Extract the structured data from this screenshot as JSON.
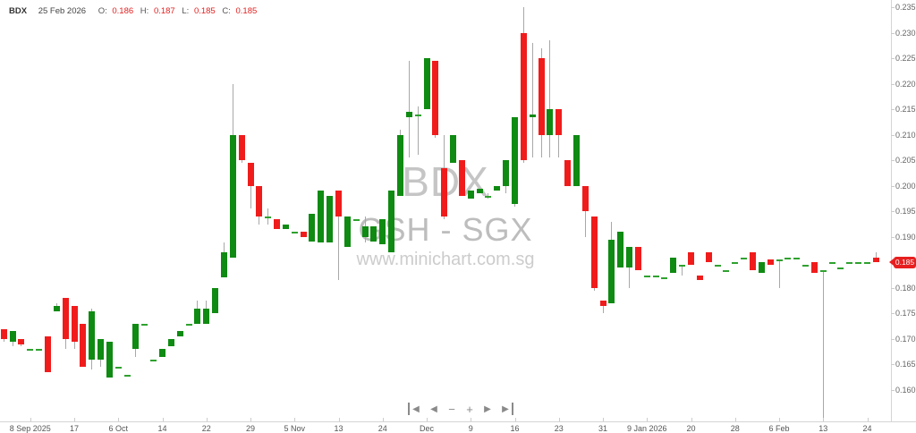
{
  "header": {
    "symbol": "BDX",
    "date": "25 Feb 2026",
    "o_label": "O:",
    "o_value": "0.186",
    "h_label": "H:",
    "h_value": "0.187",
    "l_label": "L:",
    "l_value": "0.185",
    "c_label": "C:",
    "c_value": "0.185"
  },
  "watermark": {
    "symbol": "BDX",
    "name_exchange": "GSH - SGX",
    "site": "www.minichart.com.sg"
  },
  "nav": {
    "skip_start": "◀",
    "step_back": "◀",
    "zoom_out": "−",
    "zoom_in": "+",
    "step_forward": "▶",
    "skip_end": "▶"
  },
  "chart_data": {
    "type": "candlestick",
    "title": "BDX",
    "subtitle": "GSH - SGX",
    "exchange": "SGX",
    "last_price": "0.185",
    "colors": {
      "up": "#0f8a12",
      "down": "#f01c1c",
      "doji": "#2fa12f",
      "wick": "#a8a8a8",
      "badge": "#e71f1f",
      "value_text": "#e32020",
      "watermark": "#c5c5c5"
    },
    "y_axis": {
      "min": 0.16,
      "max": 0.235,
      "step": 0.005,
      "labels": [
        "0.235",
        "0.230",
        "0.225",
        "0.220",
        "0.215",
        "0.210",
        "0.205",
        "0.200",
        "0.195",
        "0.190",
        "0.180",
        "0.175",
        "0.170",
        "0.165",
        "0.160"
      ]
    },
    "x_labels": [
      {
        "t": "8 Sep 2025",
        "i": 3
      },
      {
        "t": "17",
        "i": 8
      },
      {
        "t": "6 Oct",
        "i": 13
      },
      {
        "t": "14",
        "i": 18
      },
      {
        "t": "22",
        "i": 23
      },
      {
        "t": "29",
        "i": 28
      },
      {
        "t": "5 Nov",
        "i": 33
      },
      {
        "t": "13",
        "i": 38
      },
      {
        "t": "24",
        "i": 43
      },
      {
        "t": "Dec",
        "i": 48
      },
      {
        "t": "9",
        "i": 53
      },
      {
        "t": "16",
        "i": 58
      },
      {
        "t": "23",
        "i": 63
      },
      {
        "t": "31",
        "i": 68
      },
      {
        "t": "9 Jan 2026",
        "i": 73
      },
      {
        "t": "20",
        "i": 78
      },
      {
        "t": "28",
        "i": 83
      },
      {
        "t": "6 Feb",
        "i": 88
      },
      {
        "t": "13",
        "i": 93
      },
      {
        "t": "24",
        "i": 98
      }
    ],
    "candles": [
      {
        "o": 0.172,
        "h": 0.172,
        "l": 0.1695,
        "c": 0.17
      },
      {
        "o": 0.1695,
        "h": 0.1715,
        "l": 0.1685,
        "c": 0.1715
      },
      {
        "o": 0.17,
        "h": 0.17,
        "l": 0.1685,
        "c": 0.169
      },
      {
        "o": 0.168,
        "h": 0.168,
        "l": 0.168,
        "c": 0.168
      },
      {
        "o": 0.168,
        "h": 0.168,
        "l": 0.168,
        "c": 0.168
      },
      {
        "o": 0.1705,
        "h": 0.1705,
        "l": 0.1635,
        "c": 0.1635
      },
      {
        "o": 0.1755,
        "h": 0.177,
        "l": 0.1755,
        "c": 0.1765
      },
      {
        "o": 0.178,
        "h": 0.178,
        "l": 0.168,
        "c": 0.17
      },
      {
        "o": 0.1765,
        "h": 0.1765,
        "l": 0.168,
        "c": 0.1695
      },
      {
        "o": 0.173,
        "h": 0.173,
        "l": 0.1645,
        "c": 0.1645
      },
      {
        "o": 0.166,
        "h": 0.176,
        "l": 0.164,
        "c": 0.1755
      },
      {
        "o": 0.166,
        "h": 0.17,
        "l": 0.1645,
        "c": 0.17
      },
      {
        "o": 0.1625,
        "h": 0.1695,
        "l": 0.1625,
        "c": 0.1695
      },
      {
        "o": 0.1645,
        "h": 0.1645,
        "l": 0.1645,
        "c": 0.1645
      },
      {
        "o": 0.163,
        "h": 0.163,
        "l": 0.163,
        "c": 0.163
      },
      {
        "o": 0.168,
        "h": 0.173,
        "l": 0.1665,
        "c": 0.173
      },
      {
        "o": 0.173,
        "h": 0.173,
        "l": 0.173,
        "c": 0.173
      },
      {
        "o": 0.166,
        "h": 0.166,
        "l": 0.166,
        "c": 0.166
      },
      {
        "o": 0.1665,
        "h": 0.168,
        "l": 0.1665,
        "c": 0.168
      },
      {
        "o": 0.1685,
        "h": 0.17,
        "l": 0.1685,
        "c": 0.17
      },
      {
        "o": 0.1705,
        "h": 0.1715,
        "l": 0.1705,
        "c": 0.1715
      },
      {
        "o": 0.173,
        "h": 0.173,
        "l": 0.173,
        "c": 0.173
      },
      {
        "o": 0.173,
        "h": 0.1775,
        "l": 0.173,
        "c": 0.176
      },
      {
        "o": 0.173,
        "h": 0.1775,
        "l": 0.173,
        "c": 0.176
      },
      {
        "o": 0.175,
        "h": 0.18,
        "l": 0.175,
        "c": 0.18
      },
      {
        "o": 0.182,
        "h": 0.189,
        "l": 0.182,
        "c": 0.187
      },
      {
        "o": 0.186,
        "h": 0.22,
        "l": 0.186,
        "c": 0.21
      },
      {
        "o": 0.21,
        "h": 0.21,
        "l": 0.2045,
        "c": 0.205
      },
      {
        "o": 0.2045,
        "h": 0.2045,
        "l": 0.1955,
        "c": 0.2
      },
      {
        "o": 0.2,
        "h": 0.2,
        "l": 0.1925,
        "c": 0.194
      },
      {
        "o": 0.194,
        "h": 0.1955,
        "l": 0.1925,
        "c": 0.194
      },
      {
        "o": 0.1935,
        "h": 0.1935,
        "l": 0.1915,
        "c": 0.1915
      },
      {
        "o": 0.1915,
        "h": 0.1925,
        "l": 0.1915,
        "c": 0.1925
      },
      {
        "o": 0.191,
        "h": 0.191,
        "l": 0.191,
        "c": 0.191
      },
      {
        "o": 0.191,
        "h": 0.191,
        "l": 0.19,
        "c": 0.19
      },
      {
        "o": 0.189,
        "h": 0.1945,
        "l": 0.189,
        "c": 0.1945
      },
      {
        "o": 0.189,
        "h": 0.199,
        "l": 0.189,
        "c": 0.199
      },
      {
        "o": 0.189,
        "h": 0.198,
        "l": 0.189,
        "c": 0.198
      },
      {
        "o": 0.199,
        "h": 0.199,
        "l": 0.1815,
        "c": 0.194
      },
      {
        "o": 0.188,
        "h": 0.194,
        "l": 0.188,
        "c": 0.194
      },
      {
        "o": 0.1935,
        "h": 0.1935,
        "l": 0.1935,
        "c": 0.1935
      },
      {
        "o": 0.19,
        "h": 0.194,
        "l": 0.189,
        "c": 0.192
      },
      {
        "o": 0.189,
        "h": 0.192,
        "l": 0.189,
        "c": 0.192
      },
      {
        "o": 0.1885,
        "h": 0.1935,
        "l": 0.1885,
        "c": 0.1935
      },
      {
        "o": 0.187,
        "h": 0.199,
        "l": 0.187,
        "c": 0.199
      },
      {
        "o": 0.198,
        "h": 0.211,
        "l": 0.198,
        "c": 0.21
      },
      {
        "o": 0.2135,
        "h": 0.2245,
        "l": 0.2055,
        "c": 0.2145
      },
      {
        "o": 0.214,
        "h": 0.2155,
        "l": 0.206,
        "c": 0.214
      },
      {
        "o": 0.215,
        "h": 0.225,
        "l": 0.215,
        "c": 0.225
      },
      {
        "o": 0.2245,
        "h": 0.2245,
        "l": 0.2095,
        "c": 0.21
      },
      {
        "o": 0.2035,
        "h": 0.21,
        "l": 0.1935,
        "c": 0.194
      },
      {
        "o": 0.2045,
        "h": 0.21,
        "l": 0.2045,
        "c": 0.21
      },
      {
        "o": 0.205,
        "h": 0.205,
        "l": 0.198,
        "c": 0.198
      },
      {
        "o": 0.1975,
        "h": 0.199,
        "l": 0.1975,
        "c": 0.199
      },
      {
        "o": 0.1985,
        "h": 0.1995,
        "l": 0.1985,
        "c": 0.1995
      },
      {
        "o": 0.198,
        "h": 0.1985,
        "l": 0.1975,
        "c": 0.198
      },
      {
        "o": 0.199,
        "h": 0.2,
        "l": 0.199,
        "c": 0.2
      },
      {
        "o": 0.2,
        "h": 0.205,
        "l": 0.1985,
        "c": 0.205
      },
      {
        "o": 0.1965,
        "h": 0.2135,
        "l": 0.196,
        "c": 0.2135
      },
      {
        "o": 0.23,
        "h": 0.235,
        "l": 0.2045,
        "c": 0.205
      },
      {
        "o": 0.2135,
        "h": 0.228,
        "l": 0.2055,
        "c": 0.214
      },
      {
        "o": 0.225,
        "h": 0.227,
        "l": 0.2055,
        "c": 0.21
      },
      {
        "o": 0.21,
        "h": 0.2285,
        "l": 0.2055,
        "c": 0.215
      },
      {
        "o": 0.215,
        "h": 0.215,
        "l": 0.2055,
        "c": 0.21
      },
      {
        "o": 0.205,
        "h": 0.205,
        "l": 0.2,
        "c": 0.2
      },
      {
        "o": 0.2,
        "h": 0.21,
        "l": 0.2,
        "c": 0.21
      },
      {
        "o": 0.2,
        "h": 0.2,
        "l": 0.19,
        "c": 0.195
      },
      {
        "o": 0.194,
        "h": 0.194,
        "l": 0.1795,
        "c": 0.18
      },
      {
        "o": 0.1775,
        "h": 0.1775,
        "l": 0.175,
        "c": 0.1765
      },
      {
        "o": 0.177,
        "h": 0.193,
        "l": 0.177,
        "c": 0.1895
      },
      {
        "o": 0.184,
        "h": 0.191,
        "l": 0.184,
        "c": 0.191
      },
      {
        "o": 0.184,
        "h": 0.188,
        "l": 0.18,
        "c": 0.188
      },
      {
        "o": 0.188,
        "h": 0.188,
        "l": 0.1835,
        "c": 0.1835
      },
      {
        "o": 0.1825,
        "h": 0.1825,
        "l": 0.1825,
        "c": 0.1825
      },
      {
        "o": 0.1825,
        "h": 0.1825,
        "l": 0.1825,
        "c": 0.1825
      },
      {
        "o": 0.182,
        "h": 0.182,
        "l": 0.182,
        "c": 0.182
      },
      {
        "o": 0.183,
        "h": 0.186,
        "l": 0.183,
        "c": 0.186
      },
      {
        "o": 0.1845,
        "h": 0.1845,
        "l": 0.1825,
        "c": 0.1845
      },
      {
        "o": 0.187,
        "h": 0.187,
        "l": 0.1845,
        "c": 0.1845
      },
      {
        "o": 0.1825,
        "h": 0.1825,
        "l": 0.1815,
        "c": 0.1815
      },
      {
        "o": 0.187,
        "h": 0.187,
        "l": 0.185,
        "c": 0.185
      },
      {
        "o": 0.1845,
        "h": 0.1845,
        "l": 0.1845,
        "c": 0.1845
      },
      {
        "o": 0.1835,
        "h": 0.1835,
        "l": 0.1835,
        "c": 0.1835
      },
      {
        "o": 0.185,
        "h": 0.185,
        "l": 0.185,
        "c": 0.185
      },
      {
        "o": 0.186,
        "h": 0.186,
        "l": 0.186,
        "c": 0.186
      },
      {
        "o": 0.187,
        "h": 0.187,
        "l": 0.1835,
        "c": 0.1835
      },
      {
        "o": 0.183,
        "h": 0.185,
        "l": 0.183,
        "c": 0.185
      },
      {
        "o": 0.1855,
        "h": 0.1855,
        "l": 0.1845,
        "c": 0.1845
      },
      {
        "o": 0.1855,
        "h": 0.1855,
        "l": 0.18,
        "c": 0.1855
      },
      {
        "o": 0.186,
        "h": 0.186,
        "l": 0.186,
        "c": 0.186
      },
      {
        "o": 0.186,
        "h": 0.186,
        "l": 0.186,
        "c": 0.186
      },
      {
        "o": 0.1845,
        "h": 0.1845,
        "l": 0.1845,
        "c": 0.1845
      },
      {
        "o": 0.185,
        "h": 0.185,
        "l": 0.183,
        "c": 0.183
      },
      {
        "o": 0.1835,
        "h": 0.1835,
        "l": 0.1545,
        "c": 0.1835
      },
      {
        "o": 0.185,
        "h": 0.185,
        "l": 0.185,
        "c": 0.185
      },
      {
        "o": 0.184,
        "h": 0.184,
        "l": 0.184,
        "c": 0.184
      },
      {
        "o": 0.185,
        "h": 0.185,
        "l": 0.185,
        "c": 0.185
      },
      {
        "o": 0.185,
        "h": 0.185,
        "l": 0.185,
        "c": 0.185
      },
      {
        "o": 0.185,
        "h": 0.185,
        "l": 0.185,
        "c": 0.185
      },
      {
        "o": 0.186,
        "h": 0.187,
        "l": 0.185,
        "c": 0.185
      }
    ]
  }
}
